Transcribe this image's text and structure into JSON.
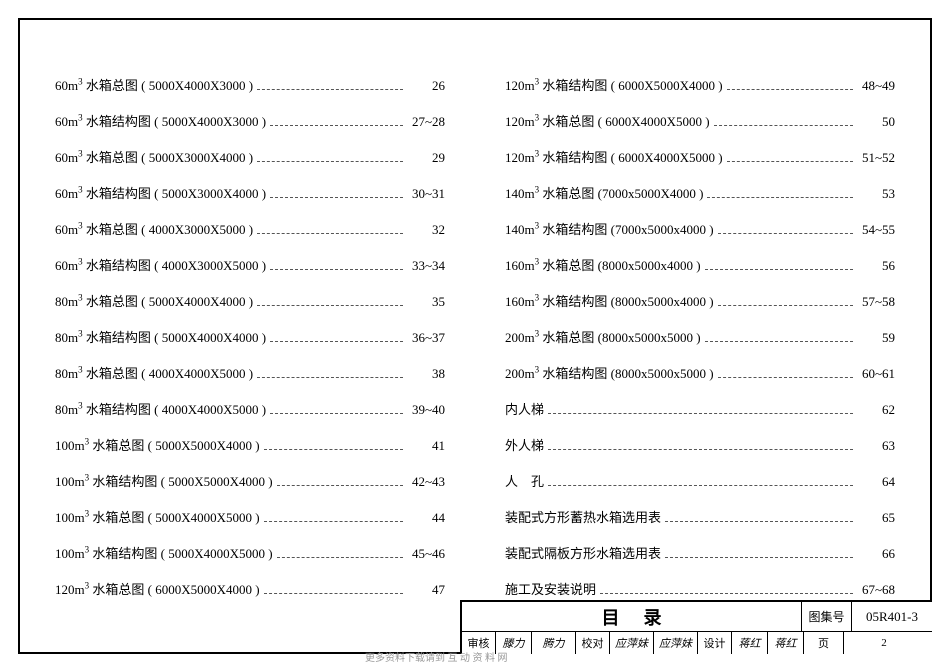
{
  "title": "目录",
  "code_label": "图集号",
  "code": "05R401-3",
  "page_label": "页",
  "page_number": "2",
  "signoff": {
    "review_label": "审核",
    "review_name": "滕力",
    "review_sig": "腾力",
    "check_label": "校对",
    "check_name": "应萍妹",
    "check_sig": "应萍妹",
    "design_label": "设计",
    "design_name": "蒋红",
    "design_sig": "蒋红"
  },
  "watermark": "更多资料下载请到   互   动   资   料   网",
  "columns": [
    [
      {
        "label": "60m³ 水箱总图 ( 5000X4000X3000 )",
        "page": "26"
      },
      {
        "label": "60m³ 水箱结构图 ( 5000X4000X3000 )",
        "page": "27~28"
      },
      {
        "label": "60m³ 水箱总图 ( 5000X3000X4000 )",
        "page": "29"
      },
      {
        "label": "60m³ 水箱结构图 ( 5000X3000X4000 )",
        "page": "30~31"
      },
      {
        "label": "60m³ 水箱总图 ( 4000X3000X5000 )",
        "page": "32"
      },
      {
        "label": "60m³ 水箱结构图 ( 4000X3000X5000 )",
        "page": "33~34"
      },
      {
        "label": "80m³ 水箱总图 ( 5000X4000X4000 )",
        "page": "35"
      },
      {
        "label": "80m³ 水箱结构图 ( 5000X4000X4000 )",
        "page": "36~37"
      },
      {
        "label": "80m³ 水箱总图 ( 4000X4000X5000 )",
        "page": "38"
      },
      {
        "label": "80m³ 水箱结构图 ( 4000X4000X5000 )",
        "page": "39~40"
      },
      {
        "label": "100m³ 水箱总图 ( 5000X5000X4000 )",
        "page": "41"
      },
      {
        "label": "100m³ 水箱结构图 ( 5000X5000X4000 )",
        "page": "42~43"
      },
      {
        "label": "100m³ 水箱总图 ( 5000X4000X5000 )",
        "page": "44"
      },
      {
        "label": "100m³ 水箱结构图 ( 5000X4000X5000 )",
        "page": "45~46"
      },
      {
        "label": "120m³ 水箱总图 ( 6000X5000X4000 )",
        "page": "47"
      }
    ],
    [
      {
        "label": "120m³ 水箱结构图 ( 6000X5000X4000 )",
        "page": "48~49"
      },
      {
        "label": "120m³ 水箱总图 ( 6000X4000X5000 )",
        "page": "50"
      },
      {
        "label": "120m³ 水箱结构图 ( 6000X4000X5000 )",
        "page": "51~52"
      },
      {
        "label": "140m³ 水箱总图 (7000x5000X4000 )",
        "page": "53"
      },
      {
        "label": "140m³ 水箱结构图 (7000x5000x4000 )",
        "page": "54~55"
      },
      {
        "label": "160m³ 水箱总图 (8000x5000x4000 )",
        "page": "56"
      },
      {
        "label": "160m³ 水箱结构图 (8000x5000x4000 )",
        "page": "57~58"
      },
      {
        "label": "200m³ 水箱总图 (8000x5000x5000 )",
        "page": "59"
      },
      {
        "label": "200m³ 水箱结构图 (8000x5000x5000 )",
        "page": "60~61"
      },
      {
        "label": "内人梯",
        "page": "62"
      },
      {
        "label": "外人梯",
        "page": "63"
      },
      {
        "label": "人　孔",
        "page": "64"
      },
      {
        "label": "装配式方形蓄热水箱选用表",
        "page": "65"
      },
      {
        "label": "装配式隔板方形水箱选用表",
        "page": "66"
      },
      {
        "label": "施工及安装说明",
        "page": "67~68"
      }
    ]
  ]
}
